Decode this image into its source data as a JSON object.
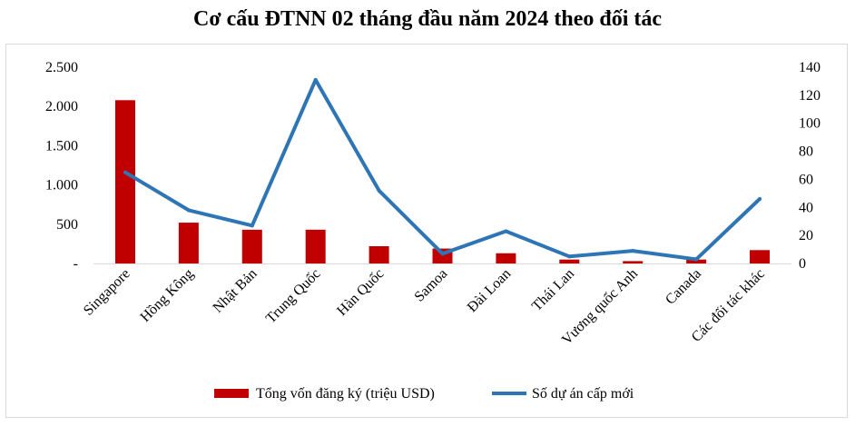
{
  "chart_data": {
    "type": "bar",
    "title": "Cơ cấu ĐTNN 02 tháng đầu năm 2024 theo đối tác",
    "categories": [
      "Singapore",
      "Hồng Kông",
      "Nhật Bản",
      "Trung Quốc",
      "Hàn Quốc",
      "Samoa",
      "Đài Loan",
      "Thái Lan",
      "Vương quốc Anh",
      "Canada",
      "Các đối tác khác"
    ],
    "series": [
      {
        "name": "Tổng vốn đăng ký (triệu USD)",
        "type": "bar",
        "axis": "left",
        "color": "#c00000",
        "values": [
          2080,
          520,
          430,
          430,
          220,
          190,
          130,
          50,
          30,
          50,
          170
        ]
      },
      {
        "name": "Số dự án cấp mới",
        "type": "line",
        "axis": "right",
        "color": "#2e75b6",
        "values": [
          65,
          38,
          27,
          131,
          52,
          7,
          23,
          5,
          9,
          3,
          46
        ]
      }
    ],
    "yleft": {
      "lim": [
        0,
        2500
      ],
      "ticks": [
        "-",
        "500",
        "1.000",
        "1.500",
        "2.000",
        "2.500"
      ]
    },
    "yright": {
      "lim": [
        0,
        140
      ],
      "ticks": [
        "0",
        "20",
        "40",
        "60",
        "80",
        "100",
        "120",
        "140"
      ]
    },
    "legend": "bottom",
    "grid": false
  }
}
